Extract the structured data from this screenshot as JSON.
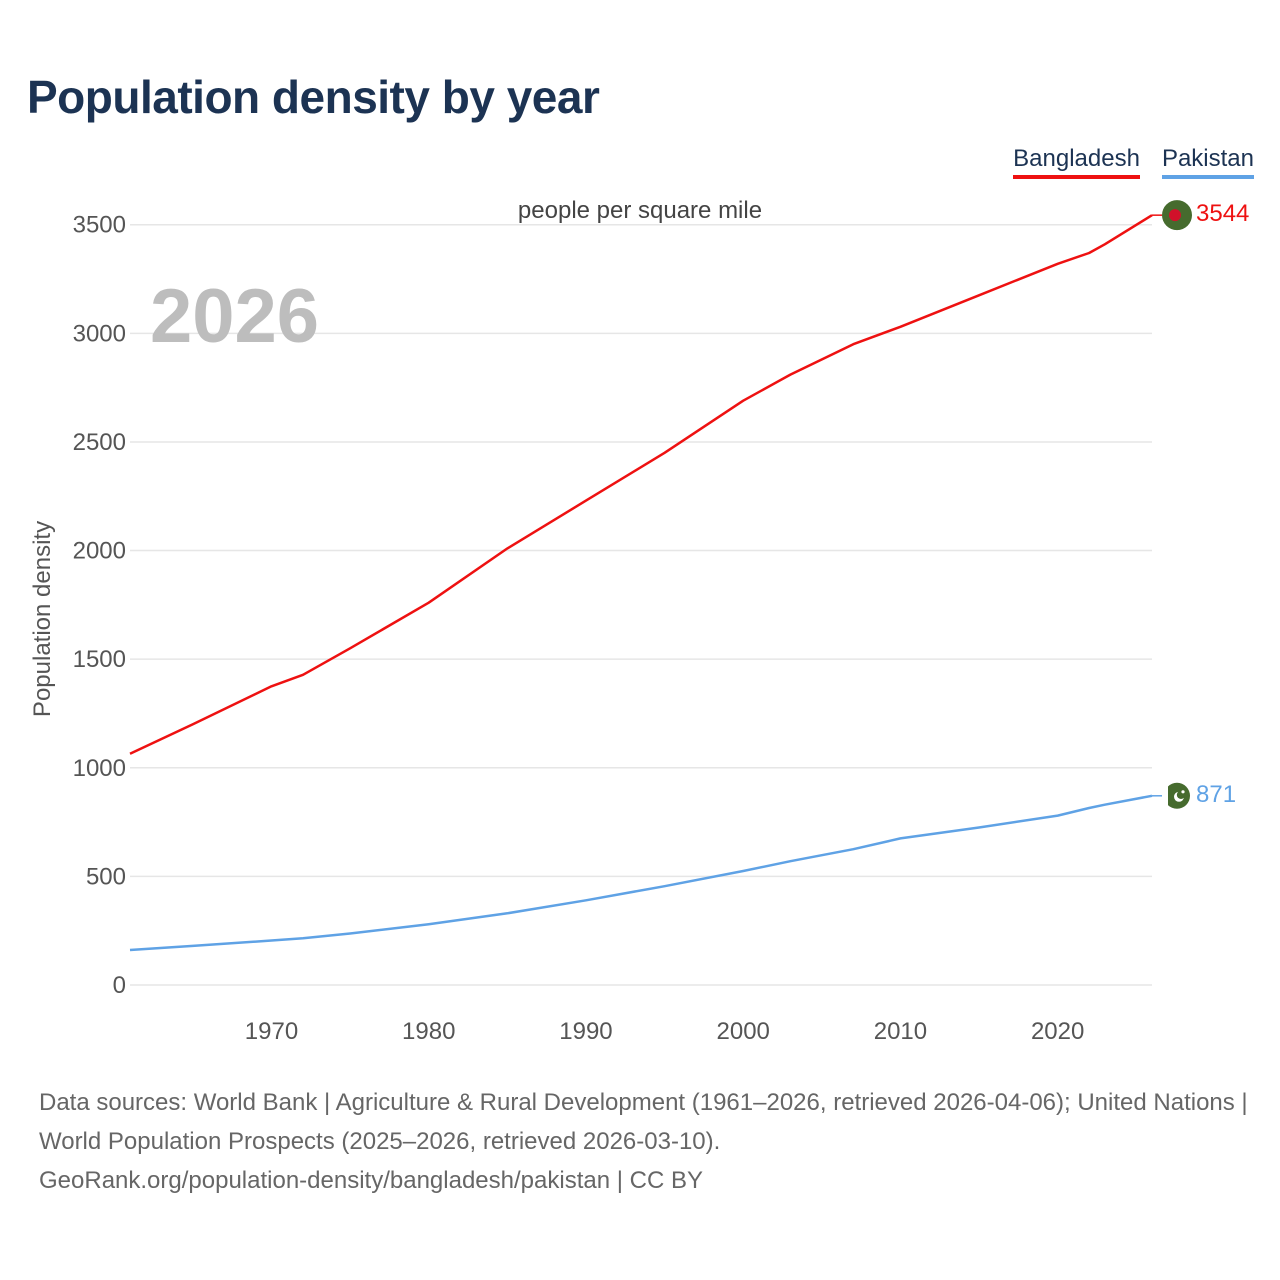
{
  "header": {
    "title": "Population density by year"
  },
  "legend": {
    "items": [
      "Bangladesh",
      "Pakistan"
    ]
  },
  "unit_label": "people per square mile",
  "year_label": "2026",
  "footer": {
    "line1": "Data sources: World Bank | Agriculture & Rural Development (1961–2026, retrieved 2026-04-06); United Nations | World Population Prospects (2025–2026, retrieved 2026-03-10).",
    "line2": "GeoRank.org/population-density/bangladesh/pakistan | CC BY"
  },
  "colors": {
    "bangladesh": "#ee1111",
    "pakistan": "#5fa2e5",
    "flag_green": "#466b2e",
    "flag_red": "#d1112a",
    "grid": "#e6e6e6"
  },
  "chart_data": {
    "type": "line",
    "title": "Population density by year",
    "subtitle": "people per square mile",
    "xlabel": "",
    "ylabel": "Population density",
    "xlim": [
      1961,
      2026
    ],
    "ylim": [
      0,
      3600
    ],
    "x_ticks": [
      1970,
      1980,
      1990,
      2000,
      2010,
      2020
    ],
    "y_ticks": [
      0,
      500,
      1000,
      1500,
      2000,
      2500,
      3000,
      3500
    ],
    "x": [
      1961,
      1965,
      1970,
      1972,
      1975,
      1980,
      1985,
      1990,
      1995,
      2000,
      2003,
      2007,
      2010,
      2015,
      2020,
      2022,
      2023,
      2026
    ],
    "series": [
      {
        "name": "Bangladesh",
        "color": "#ee1111",
        "end_label": "3544",
        "values": [
          1065,
          1200,
          1375,
          1428,
          1550,
          1760,
          2010,
          2230,
          2450,
          2690,
          2810,
          2950,
          3030,
          3175,
          3320,
          3370,
          3410,
          3544
        ]
      },
      {
        "name": "Pakistan",
        "color": "#5fa2e5",
        "end_label": "871",
        "values": [
          161,
          180,
          205,
          215,
          237,
          280,
          330,
          390,
          455,
          525,
          570,
          625,
          675,
          725,
          780,
          815,
          830,
          871
        ]
      }
    ],
    "legend_position": "top-right"
  }
}
